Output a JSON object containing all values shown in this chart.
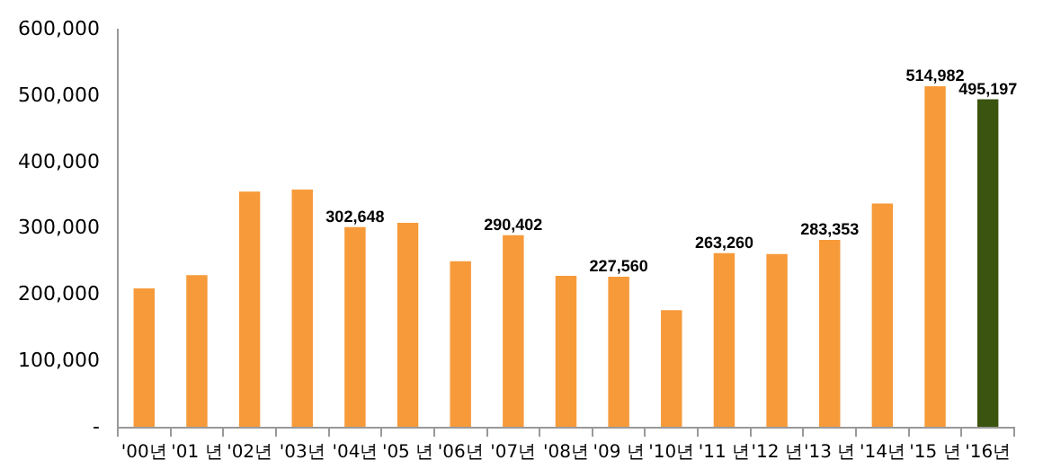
{
  "chart_data": {
    "type": "bar",
    "categories": [
      "'00년",
      "'01 년",
      "'02년",
      "'03년",
      "'04년",
      "'05 년",
      "'06년",
      "'07년",
      "'08년",
      "'09 년",
      "'10년",
      "'11 년",
      "'12 년",
      "'13 년",
      "'14년",
      "'15 년",
      "'16년"
    ],
    "values": [
      210000,
      230000,
      356000,
      359000,
      302648,
      309000,
      251000,
      290402,
      229000,
      227560,
      177000,
      263260,
      262000,
      283353,
      338000,
      514982,
      495197
    ],
    "value_labels": [
      null,
      null,
      null,
      null,
      "302,648",
      null,
      null,
      "290,402",
      null,
      "227,560",
      null,
      "263,260",
      null,
      "283,353",
      null,
      "514,982",
      "495,197"
    ],
    "colors": [
      "#f79a3a",
      "#f79a3a",
      "#f79a3a",
      "#f79a3a",
      "#f79a3a",
      "#f79a3a",
      "#f79a3a",
      "#f79a3a",
      "#f79a3a",
      "#f79a3a",
      "#f79a3a",
      "#f79a3a",
      "#f79a3a",
      "#f79a3a",
      "#f79a3a",
      "#f79a3a",
      "#3b5410"
    ],
    "ylim": [
      0,
      600000
    ],
    "yticks": [
      {
        "value": 0,
        "label": "-"
      },
      {
        "value": 100000,
        "label": "100,000"
      },
      {
        "value": 200000,
        "label": "200,000"
      },
      {
        "value": 300000,
        "label": "300,000"
      },
      {
        "value": 400000,
        "label": "400,000"
      },
      {
        "value": 500000,
        "label": "500,000"
      },
      {
        "value": 600000,
        "label": "600,000"
      }
    ],
    "grid": false,
    "legend": false
  }
}
